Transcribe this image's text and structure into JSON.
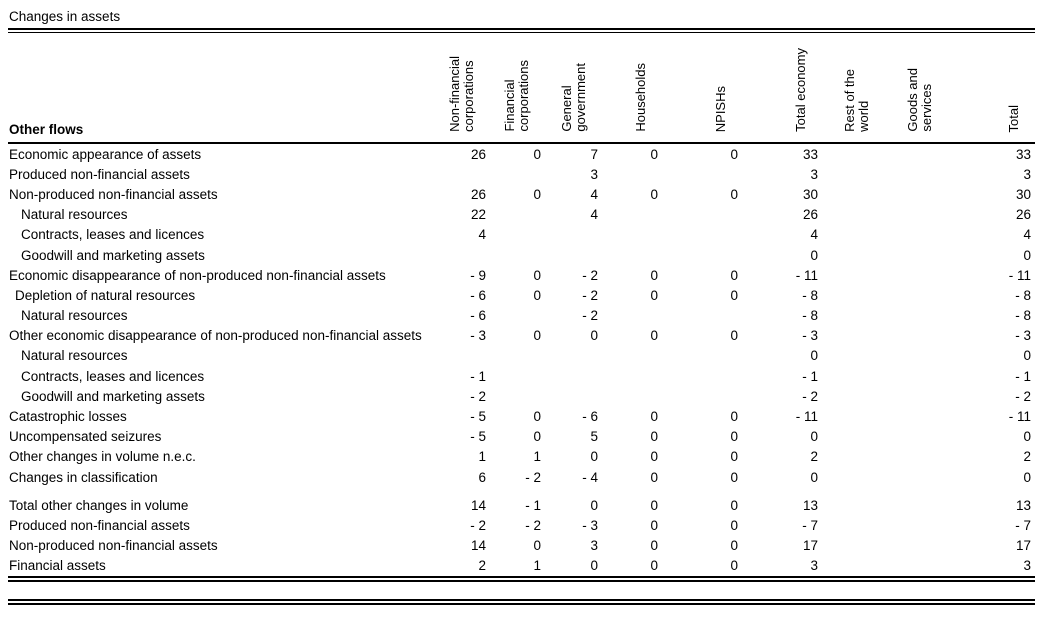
{
  "title": "Changes in assets",
  "table": {
    "row_header": "Other flows",
    "columns": [
      "Non-financial\ncorporations",
      "Financial\ncorporations",
      "General\ngovernment",
      "Households",
      "NPISHs",
      "Total economy",
      "Rest of the\nworld",
      "Goods and\nservices",
      "Total"
    ],
    "rows": [
      {
        "label": "Economic appearance of assets",
        "indent": 0,
        "values": [
          "26",
          "0",
          "7",
          "0",
          "0",
          "33",
          "",
          "",
          "33"
        ]
      },
      {
        "label": "Produced non-financial assets",
        "indent": 0,
        "values": [
          "",
          "",
          "3",
          "",
          "",
          "3",
          "",
          "",
          "3"
        ]
      },
      {
        "label": "Non-produced non-financial assets",
        "indent": 0,
        "values": [
          "26",
          "0",
          "4",
          "0",
          "0",
          "30",
          "",
          "",
          "30"
        ]
      },
      {
        "label": "Natural resources",
        "indent": 2,
        "values": [
          "22",
          "",
          "4",
          "",
          "",
          "26",
          "",
          "",
          "26"
        ]
      },
      {
        "label": "Contracts, leases and licences",
        "indent": 2,
        "values": [
          "4",
          "",
          "",
          "",
          "",
          "4",
          "",
          "",
          "4"
        ]
      },
      {
        "label": "Goodwill and marketing assets",
        "indent": 2,
        "values": [
          "",
          "",
          "",
          "",
          "",
          "0",
          "",
          "",
          "0"
        ]
      },
      {
        "label": "Economic disappearance of non-produced non-financial assets",
        "indent": 0,
        "values": [
          "- 9",
          "0",
          "- 2",
          "0",
          "0",
          "- 11",
          "",
          "",
          "- 11"
        ]
      },
      {
        "label": "Depletion of natural resources",
        "indent": 1,
        "values": [
          "- 6",
          "0",
          "- 2",
          "0",
          "0",
          "- 8",
          "",
          "",
          "- 8"
        ]
      },
      {
        "label": "Natural resources",
        "indent": 2,
        "values": [
          "- 6",
          "",
          "- 2",
          "",
          "",
          "- 8",
          "",
          "",
          "- 8"
        ]
      },
      {
        "label": "Other economic disappearance of non-produced non-financial assets",
        "indent": 0,
        "values": [
          "- 3",
          "0",
          "0",
          "0",
          "0",
          "- 3",
          "",
          "",
          "- 3"
        ]
      },
      {
        "label": "Natural resources",
        "indent": 2,
        "values": [
          "",
          "",
          "",
          "",
          "",
          "0",
          "",
          "",
          "0"
        ]
      },
      {
        "label": "Contracts, leases and licences",
        "indent": 2,
        "values": [
          "- 1",
          "",
          "",
          "",
          "",
          "- 1",
          "",
          "",
          "- 1"
        ]
      },
      {
        "label": "Goodwill and marketing assets",
        "indent": 2,
        "values": [
          "- 2",
          "",
          "",
          "",
          "",
          "- 2",
          "",
          "",
          "- 2"
        ]
      },
      {
        "label": "Catastrophic losses",
        "indent": 0,
        "values": [
          "- 5",
          "0",
          "- 6",
          "0",
          "0",
          "- 11",
          "",
          "",
          "- 11"
        ]
      },
      {
        "label": "Uncompensated seizures",
        "indent": 0,
        "values": [
          "- 5",
          "0",
          "5",
          "0",
          "0",
          "0",
          "",
          "",
          "0"
        ]
      },
      {
        "label": "Other changes in volume n.e.c.",
        "indent": 0,
        "values": [
          "1",
          "1",
          "0",
          "0",
          "0",
          "2",
          "",
          "",
          "2"
        ]
      },
      {
        "label": "Changes in classification",
        "indent": 0,
        "values": [
          "6",
          "- 2",
          "- 4",
          "0",
          "0",
          "0",
          "",
          "",
          "0"
        ]
      },
      {
        "label": "Total other changes in volume",
        "indent": 0,
        "group_break": true,
        "values": [
          "14",
          "- 1",
          "0",
          "0",
          "0",
          "13",
          "",
          "",
          "13"
        ]
      },
      {
        "label": "Produced non-financial assets",
        "indent": 0,
        "values": [
          "- 2",
          "- 2",
          "- 3",
          "0",
          "0",
          "- 7",
          "",
          "",
          "- 7"
        ]
      },
      {
        "label": "Non-produced non-financial assets",
        "indent": 0,
        "values": [
          "14",
          "0",
          "3",
          "0",
          "0",
          "17",
          "",
          "",
          "17"
        ]
      },
      {
        "label": "Financial assets",
        "indent": 0,
        "values": [
          "2",
          "1",
          "0",
          "0",
          "0",
          "3",
          "",
          "",
          "3"
        ]
      }
    ]
  }
}
